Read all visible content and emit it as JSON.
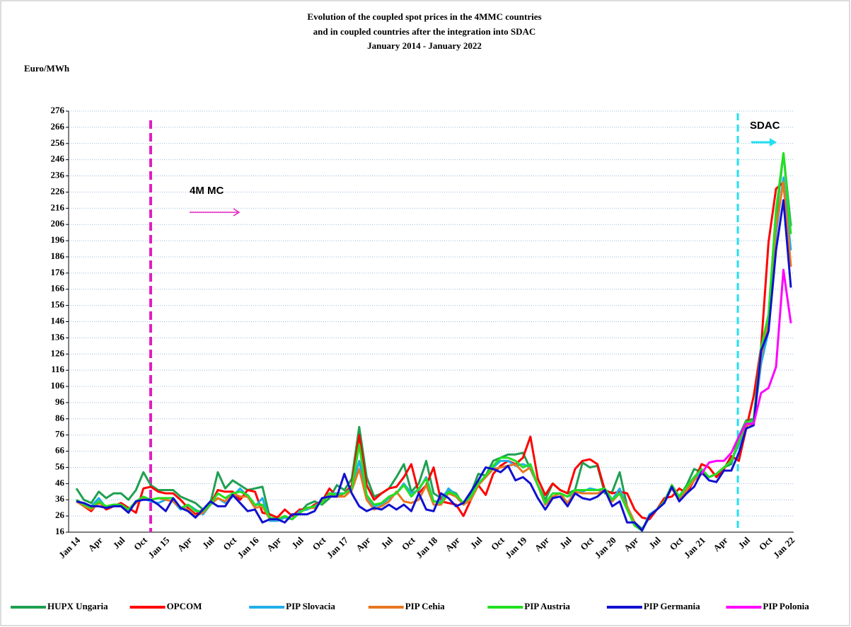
{
  "chart_data": {
    "type": "line",
    "title": [
      "Evolution  of the coupled spot prices in the 4MMC countries",
      "and in coupled countries  after the integration  into SDAC",
      "January  2014 - January  2022"
    ],
    "y_label": "Euro/MWh",
    "annotations": [
      {
        "text": "4M MC",
        "color": "#e020c0"
      },
      {
        "text": "SDAC",
        "color": "#22e0f0"
      }
    ],
    "categories": [
      "Jan 14",
      null,
      null,
      "Apr",
      null,
      null,
      "Jul",
      null,
      null,
      "Oct",
      null,
      null,
      "Jan 15",
      null,
      null,
      "Apr",
      null,
      null,
      "Jul",
      null,
      null,
      "Oct",
      null,
      null,
      "Jan 16",
      null,
      null,
      "Apr",
      null,
      null,
      "Jul",
      null,
      null,
      "Oct",
      null,
      null,
      "Jan 17",
      null,
      null,
      "Apr",
      null,
      null,
      "Jul",
      null,
      null,
      "Oct",
      null,
      null,
      "Jan 18",
      null,
      null,
      "Apr",
      null,
      null,
      "Jul",
      null,
      null,
      "Oct",
      null,
      null,
      "Jan 19",
      null,
      null,
      "Apr",
      null,
      null,
      "Jul",
      null,
      null,
      "Oct",
      null,
      null,
      "Jan 20",
      null,
      null,
      "Apr",
      null,
      null,
      "Jul",
      null,
      null,
      "Oct",
      null,
      null,
      "Jan 21",
      null,
      null,
      "Apr",
      null,
      null,
      "Jul",
      null,
      null,
      "Oct",
      null,
      null,
      "Jan 22"
    ],
    "ylim": [
      16,
      276
    ],
    "yticks": [
      16,
      26,
      36,
      46,
      56,
      66,
      76,
      86,
      96,
      106,
      116,
      126,
      136,
      146,
      156,
      166,
      176,
      186,
      196,
      206,
      216,
      226,
      236,
      246,
      256,
      266,
      276
    ],
    "grid": true,
    "legend": "bottom",
    "series": [
      {
        "name": "HUPX  Ungaria",
        "color": "#1fa050",
        "values": [
          43,
          36,
          34,
          41,
          37,
          40,
          40,
          36,
          42,
          53,
          45,
          42,
          42,
          42,
          38,
          36,
          34,
          30,
          34,
          53,
          43,
          48,
          45,
          42,
          43,
          44,
          25,
          24,
          25,
          24,
          28,
          33,
          35,
          33,
          37,
          45,
          42,
          49,
          81,
          50,
          38,
          40,
          43,
          50,
          58,
          41,
          46,
          60,
          40,
          37,
          42,
          40,
          33,
          40,
          52,
          51,
          60,
          62,
          64,
          64,
          65,
          55,
          45,
          36,
          46,
          42,
          40,
          42,
          59,
          56,
          57,
          40,
          41,
          53,
          32,
          22,
          18,
          25,
          30,
          35,
          45,
          38,
          45,
          55,
          53,
          50,
          52,
          56,
          58,
          75,
          85,
          86,
          130,
          150,
          210,
          250,
          205
        ]
      },
      {
        "name": "OPCOM",
        "color": "#ff0000",
        "values": [
          36,
          32,
          29,
          35,
          30,
          32,
          34,
          31,
          28,
          43,
          44,
          41,
          40,
          40,
          36,
          31,
          27,
          30,
          33,
          42,
          41,
          41,
          36,
          42,
          41,
          28,
          27,
          25,
          30,
          26,
          30,
          30,
          33,
          35,
          43,
          38,
          40,
          45,
          76,
          45,
          36,
          40,
          43,
          44,
          50,
          58,
          40,
          45,
          56,
          35,
          34,
          33,
          26,
          36,
          45,
          39,
          52,
          57,
          60,
          58,
          62,
          75,
          49,
          39,
          46,
          42,
          40,
          55,
          60,
          61,
          58,
          42,
          40,
          41,
          40,
          30,
          25,
          24,
          30,
          37,
          38,
          43,
          40,
          48,
          58,
          56,
          50,
          55,
          63,
          60,
          80,
          100,
          130,
          195,
          228,
          232,
          180
        ]
      },
      {
        "name": "PIP Slovacia",
        "color": "#22aee8",
        "values": [
          36,
          33,
          32,
          37,
          31,
          33,
          33,
          29,
          35,
          37,
          35,
          34,
          36,
          35,
          30,
          33,
          30,
          27,
          33,
          37,
          34,
          38,
          43,
          38,
          32,
          37,
          23,
          23,
          25,
          24,
          29,
          30,
          32,
          35,
          40,
          40,
          40,
          43,
          60,
          38,
          32,
          33,
          37,
          40,
          46,
          40,
          42,
          50,
          35,
          35,
          43,
          39,
          34,
          38,
          46,
          50,
          56,
          60,
          60,
          57,
          58,
          56,
          45,
          33,
          38,
          40,
          38,
          40,
          41,
          43,
          42,
          42,
          36,
          43,
          31,
          22,
          17,
          27,
          30,
          34,
          45,
          36,
          42,
          48,
          53,
          50,
          52,
          56,
          60,
          70,
          82,
          84,
          120,
          140,
          200,
          235,
          190
        ]
      },
      {
        "name": "PIP Cehia",
        "color": "#e87722",
        "values": [
          35,
          32,
          30,
          34,
          32,
          32,
          32,
          30,
          34,
          37,
          36,
          37,
          36,
          35,
          31,
          30,
          26,
          28,
          33,
          37,
          35,
          40,
          38,
          38,
          31,
          32,
          24,
          24,
          26,
          24,
          28,
          31,
          31,
          35,
          40,
          38,
          38,
          42,
          55,
          36,
          30,
          32,
          35,
          41,
          35,
          34,
          36,
          45,
          33,
          33,
          40,
          38,
          33,
          36,
          45,
          50,
          55,
          56,
          57,
          58,
          53,
          56,
          45,
          33,
          38,
          40,
          34,
          41,
          40,
          40,
          40,
          42,
          35,
          40,
          32,
          22,
          17,
          26,
          30,
          35,
          43,
          36,
          42,
          48,
          52,
          50,
          52,
          56,
          60,
          72,
          82,
          83,
          125,
          145,
          205,
          232,
          180
        ]
      },
      {
        "name": "PIP Austria",
        "color": "#22e022",
        "values": [
          36,
          33,
          31,
          35,
          32,
          33,
          33,
          30,
          35,
          38,
          36,
          37,
          37,
          37,
          31,
          33,
          29,
          29,
          33,
          40,
          37,
          40,
          41,
          39,
          33,
          33,
          25,
          24,
          26,
          24,
          28,
          31,
          32,
          34,
          40,
          39,
          40,
          43,
          70,
          39,
          33,
          34,
          38,
          40,
          45,
          38,
          43,
          49,
          35,
          34,
          41,
          39,
          34,
          38,
          46,
          51,
          57,
          62,
          62,
          60,
          56,
          58,
          45,
          34,
          40,
          40,
          38,
          42,
          42,
          42,
          42,
          43,
          36,
          40,
          30,
          20,
          17,
          26,
          30,
          35,
          45,
          38,
          44,
          50,
          55,
          50,
          52,
          56,
          60,
          72,
          84,
          85,
          130,
          150,
          215,
          250,
          200
        ]
      },
      {
        "name": "PIP Germania",
        "color": "#1010d0",
        "values": [
          35,
          34,
          32,
          32,
          31,
          32,
          32,
          28,
          35,
          36,
          36,
          33,
          29,
          37,
          31,
          29,
          25,
          30,
          35,
          32,
          32,
          39,
          34,
          29,
          30,
          22,
          24,
          24,
          22,
          27,
          27,
          27,
          29,
          37,
          38,
          38,
          52,
          40,
          32,
          29,
          31,
          30,
          33,
          30,
          33,
          29,
          40,
          30,
          29,
          40,
          37,
          32,
          34,
          41,
          48,
          56,
          55,
          53,
          57,
          48,
          50,
          46,
          37,
          30,
          37,
          38,
          32,
          40,
          37,
          36,
          38,
          42,
          32,
          35,
          22,
          22,
          17,
          26,
          30,
          34,
          44,
          35,
          40,
          44,
          53,
          48,
          47,
          54,
          54,
          65,
          80,
          82,
          128,
          140,
          190,
          221,
          167
        ]
      },
      {
        "name": "PIP Polonia",
        "color": "#ff00ff",
        "values": [
          null,
          null,
          null,
          null,
          null,
          null,
          null,
          null,
          null,
          null,
          null,
          null,
          null,
          null,
          null,
          null,
          null,
          null,
          null,
          null,
          null,
          null,
          null,
          null,
          null,
          null,
          null,
          null,
          null,
          null,
          null,
          null,
          null,
          null,
          null,
          null,
          null,
          null,
          null,
          null,
          null,
          null,
          null,
          null,
          null,
          null,
          null,
          null,
          null,
          null,
          null,
          null,
          null,
          null,
          null,
          null,
          null,
          null,
          null,
          null,
          null,
          null,
          null,
          null,
          null,
          null,
          null,
          null,
          null,
          null,
          null,
          null,
          null,
          null,
          null,
          null,
          null,
          null,
          null,
          null,
          null,
          null,
          null,
          null,
          52,
          59,
          60,
          60,
          65,
          75,
          83,
          83,
          102,
          105,
          118,
          178,
          145
        ]
      }
    ]
  }
}
